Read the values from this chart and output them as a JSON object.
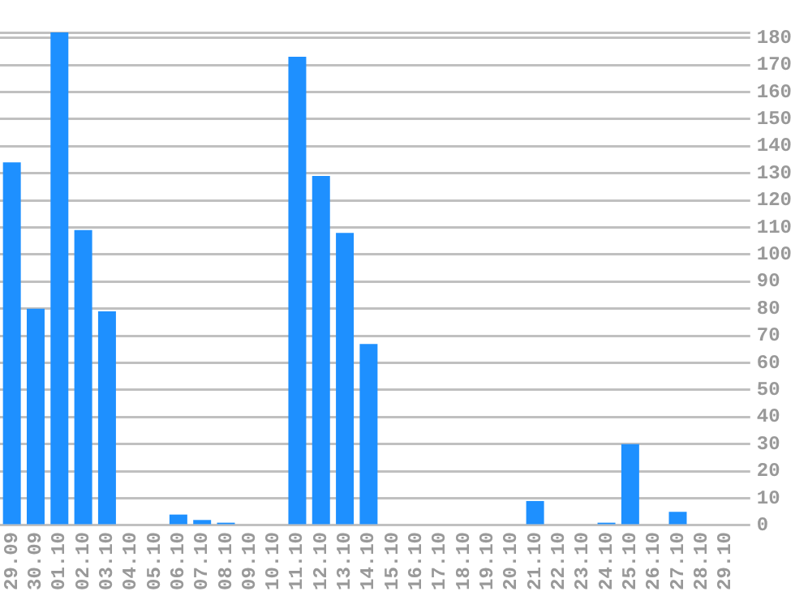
{
  "chart_data": {
    "type": "bar",
    "categories": [
      "29.09",
      "30.09",
      "01.10",
      "02.10",
      "03.10",
      "04.10",
      "05.10",
      "06.10",
      "07.10",
      "08.10",
      "09.10",
      "10.10",
      "11.10",
      "12.10",
      "13.10",
      "14.10",
      "15.10",
      "16.10",
      "17.10",
      "18.10",
      "19.10",
      "20.10",
      "21.10",
      "22.10",
      "23.10",
      "24.10",
      "25.10",
      "26.10",
      "27.10",
      "28.10",
      "29.10"
    ],
    "values": [
      134,
      80,
      182,
      109,
      79,
      0,
      0,
      4,
      2,
      1,
      0,
      0,
      173,
      129,
      108,
      67,
      0,
      0,
      0,
      0,
      0,
      0,
      9,
      0,
      0,
      1,
      30,
      0,
      5,
      0,
      0
    ],
    "color": "#1e90ff",
    "ylim": [
      0,
      182
    ],
    "yticks": [
      0,
      10,
      20,
      30,
      40,
      50,
      60,
      70,
      80,
      90,
      100,
      110,
      120,
      130,
      140,
      150,
      160,
      170,
      180,
      {
        "value": 182,
        "label": null
      }
    ],
    "grid": "y"
  }
}
